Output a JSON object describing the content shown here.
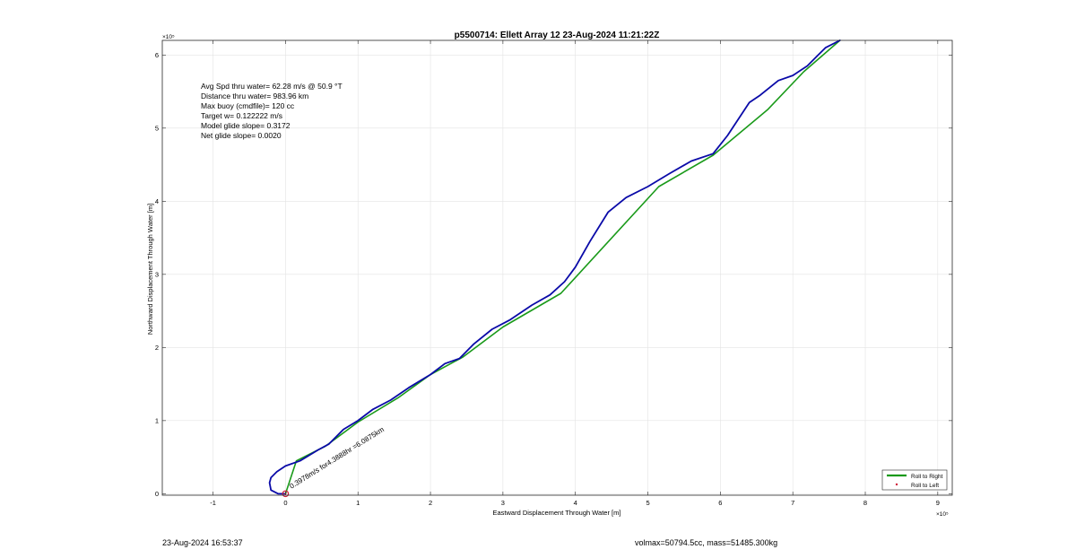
{
  "chart_data": {
    "type": "line",
    "title": "p5500714: Ellett Array 12 23-Aug-2024 11:21:22Z",
    "xlabel": "Eastward Displacement Through Water [m]",
    "ylabel": "Northward Displacement Through Water [m]",
    "x_exponent_label": "×10⁵",
    "y_exponent_label": "×10⁵",
    "xlim": [
      -1.7,
      9.2
    ],
    "ylim": [
      -0.02,
      6.2
    ],
    "x_scale": 100000,
    "y_scale": 100000,
    "xticks": [
      -1,
      0,
      1,
      2,
      3,
      4,
      5,
      6,
      7,
      8,
      9
    ],
    "yticks": [
      0,
      1,
      2,
      3,
      4,
      5,
      6
    ],
    "grid": true,
    "legend_position": "bottom-right",
    "legend": [
      {
        "label": "Roll to Right",
        "color": "#1a9a1a",
        "marker": "line"
      },
      {
        "label": "Roll to Left",
        "color": "#d0203a",
        "marker": "dot"
      }
    ],
    "info_lines": [
      "Avg Spd thru water= 62.28 m/s @  50.9 °T",
      "Distance thru water= 983.96 km",
      "Max buoy (cmdfile)= 120 cc",
      "Target w= 0.122222 m/s",
      "Model glide slope= 0.3172",
      "Net glide slope= 0.0020"
    ],
    "annotation": "0.3978m/s for4.3888hr =6.0875km",
    "series": [
      {
        "name": "Roll to Right",
        "color": "#1a9a1a",
        "x": [
          0,
          0.15,
          0.55,
          1.0,
          1.55,
          2.0,
          2.45,
          3.0,
          3.8,
          5.15,
          5.9,
          6.65,
          7.15,
          7.65
        ],
        "y": [
          0,
          0.45,
          0.65,
          0.98,
          1.31,
          1.63,
          1.87,
          2.28,
          2.74,
          4.2,
          4.63,
          5.25,
          5.77,
          6.2
        ]
      },
      {
        "name": "track",
        "color": "#0a0aa8",
        "x": [
          0.0,
          -0.1,
          -0.2,
          -0.22,
          -0.2,
          -0.12,
          0.0,
          0.2,
          0.45,
          0.6,
          0.8,
          1.0,
          1.2,
          1.45,
          1.7,
          2.0,
          2.2,
          2.4,
          2.6,
          2.85,
          3.1,
          3.4,
          3.65,
          3.85,
          4.0,
          4.2,
          4.45,
          4.7,
          5.0,
          5.3,
          5.6,
          5.9,
          6.1,
          6.3,
          6.4,
          6.55,
          6.8,
          7.0,
          7.2,
          7.35,
          7.45,
          7.65
        ],
        "y": [
          0.0,
          0.0,
          0.05,
          0.15,
          0.22,
          0.3,
          0.38,
          0.45,
          0.6,
          0.68,
          0.88,
          1.0,
          1.15,
          1.28,
          1.45,
          1.63,
          1.78,
          1.85,
          2.05,
          2.25,
          2.38,
          2.58,
          2.72,
          2.9,
          3.1,
          3.45,
          3.85,
          4.05,
          4.2,
          4.38,
          4.55,
          4.65,
          4.9,
          5.2,
          5.35,
          5.45,
          5.65,
          5.72,
          5.85,
          6.0,
          6.1,
          6.2
        ]
      }
    ],
    "start_marker": {
      "x": 0,
      "y": 0,
      "color": "#d0203a"
    }
  },
  "footer": {
    "timestamp": "23-Aug-2024 16:53:37",
    "vol_mass": "volmax=50794.5cc, mass=51485.300kg"
  }
}
